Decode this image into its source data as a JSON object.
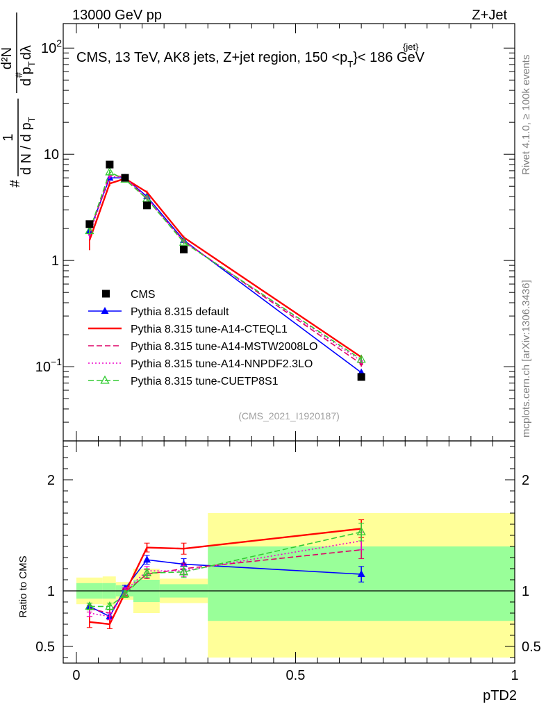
{
  "header": {
    "left": "13000 GeV pp",
    "right": "Z+Jet",
    "side_top": "Rivet 4.1.0, ≥ 100k events",
    "side_bottom": "mcplots.cern.ch [arXiv:1306.3436]",
    "analysis_id": "(CMS_2021_I1920187)"
  },
  "plot_title": {
    "main": "CMS, 13 TeV, AK8 jets, Z+jet region, 150 <p",
    "sup": "{jet}",
    "sub": "T",
    "tail": "}< 186 GeV"
  },
  "top_ylabel": {
    "lead": "#",
    "frac1_num": "1",
    "frac1_den": "d N / d p",
    "frac1_den_sub": "T",
    "frac2_num": "d²N",
    "frac2_num_sup": "#",
    "frac2_den": "d p",
    "frac2_den_sub": "T",
    "frac2_den_tail": "dλ",
    "frac2_den_sup": "#"
  },
  "colors": {
    "cms": "#000000",
    "default": "#0000ff",
    "cteql1": "#ff0000",
    "mstw": "#dd0066",
    "nnpdf": "#ee00cc",
    "cuetp": "#33cc33",
    "band_yellow": "#ffff99",
    "band_green": "#99ff99"
  },
  "chart_data": [
    {
      "type": "line",
      "panel": "main",
      "yscale": "log",
      "ylim": [
        0.02,
        170
      ],
      "xlim": [
        -0.03,
        1.0
      ],
      "y_ticks": [
        {
          "value": 0.1,
          "label": "10",
          "sup": "−1"
        },
        {
          "value": 1,
          "label": "1",
          "sup": ""
        },
        {
          "value": 10,
          "label": "10",
          "sup": ""
        },
        {
          "value": 100,
          "label": "10",
          "sup": "2"
        }
      ],
      "data": {
        "name": "CMS",
        "x": [
          0.03,
          0.076,
          0.111,
          0.161,
          0.245,
          0.65
        ],
        "y": [
          2.2,
          8.0,
          6.0,
          3.3,
          1.27,
          0.08
        ]
      },
      "series": [
        {
          "key": "default",
          "name": "Pythia 8.315 default",
          "style": "solid",
          "marker": "triangle",
          "x": [
            0.03,
            0.076,
            0.111,
            0.161,
            0.245,
            0.65
          ],
          "y": [
            1.9,
            6.0,
            6.0,
            4.0,
            1.55,
            0.088
          ],
          "err": [
            0.15,
            0.3,
            0.2,
            0.15,
            0.06,
            0.004
          ]
        },
        {
          "key": "cteql1",
          "name": "Pythia 8.315 tune-A14-CTEQL1",
          "style": "solid",
          "marker": "",
          "x": [
            0.03,
            0.076,
            0.111,
            0.161,
            0.245,
            0.65
          ],
          "y": [
            1.55,
            5.3,
            5.9,
            4.4,
            1.65,
            0.123
          ],
          "err": [
            0.2,
            0.3,
            0.2,
            0.15,
            0.06,
            0.006
          ]
        },
        {
          "key": "mstw",
          "name": "Pythia 8.315 tune-A14-MSTW2008LO",
          "style": "dashed",
          "marker": "",
          "x": [
            0.03,
            0.076,
            0.111,
            0.161,
            0.245,
            0.65
          ],
          "y": [
            1.85,
            6.4,
            6.1,
            3.8,
            1.52,
            0.106
          ],
          "err": [
            0.15,
            0.3,
            0.2,
            0.15,
            0.06,
            0.006
          ]
        },
        {
          "key": "nnpdf",
          "name": "Pythia 8.315 tune-A14-NNPDF2.3LO",
          "style": "dotted",
          "marker": "",
          "x": [
            0.03,
            0.076,
            0.111,
            0.161,
            0.245,
            0.65
          ],
          "y": [
            1.75,
            6.2,
            6.0,
            3.9,
            1.5,
            0.113
          ],
          "err": [
            0.15,
            0.3,
            0.2,
            0.15,
            0.06,
            0.006
          ]
        },
        {
          "key": "cuetp",
          "name": "Pythia 8.315 tune-CUETP8S1",
          "style": "dashed",
          "marker": "open-triangle",
          "x": [
            0.03,
            0.076,
            0.111,
            0.161,
            0.245,
            0.65
          ],
          "y": [
            1.9,
            6.8,
            5.8,
            3.8,
            1.48,
            0.117
          ],
          "err": [
            0.15,
            0.3,
            0.2,
            0.15,
            0.06,
            0.006
          ]
        }
      ],
      "legend": {
        "placement": "bottom-left",
        "entries": [
          {
            "key": "cms",
            "label": "CMS"
          },
          {
            "key": "default",
            "label": "Pythia 8.315 default"
          },
          {
            "key": "cteql1",
            "label": "Pythia 8.315 tune-A14-CTEQL1"
          },
          {
            "key": "mstw",
            "label": "Pythia 8.315 tune-A14-MSTW2008LO"
          },
          {
            "key": "nnpdf",
            "label": "Pythia 8.315 tune-A14-NNPDF2.3LO"
          },
          {
            "key": "cuetp",
            "label": "Pythia 8.315 tune-CUETP8S1"
          }
        ]
      }
    },
    {
      "type": "line",
      "panel": "ratio",
      "ylabel": "Ratio to CMS",
      "xlabel": "pTD2",
      "ylim": [
        0.35,
        2.35
      ],
      "xlim": [
        -0.03,
        1.0
      ],
      "y_ticks": [
        {
          "value": 0.5,
          "label": "0.5"
        },
        {
          "value": 1,
          "label": "1"
        },
        {
          "value": 2,
          "label": "2"
        }
      ],
      "x_ticks": [
        {
          "value": 0,
          "label": "0"
        },
        {
          "value": 0.5,
          "label": "0.5"
        },
        {
          "value": 1,
          "label": "1"
        }
      ],
      "bands": [
        {
          "x0": 0.0,
          "x1": 0.06,
          "yellow": [
            0.88,
            1.12
          ],
          "green": [
            0.93,
            1.07
          ]
        },
        {
          "x0": 0.06,
          "x1": 0.09,
          "yellow": [
            0.87,
            1.13
          ],
          "green": [
            0.93,
            1.07
          ]
        },
        {
          "x0": 0.09,
          "x1": 0.13,
          "yellow": [
            0.92,
            1.08
          ],
          "green": [
            0.95,
            1.05
          ]
        },
        {
          "x0": 0.13,
          "x1": 0.19,
          "yellow": [
            0.8,
            1.2
          ],
          "green": [
            0.9,
            1.1
          ]
        },
        {
          "x0": 0.19,
          "x1": 0.3,
          "yellow": [
            0.89,
            1.11
          ],
          "green": [
            0.94,
            1.06
          ]
        },
        {
          "x0": 0.3,
          "x1": 1.0,
          "yellow": [
            0.4,
            1.7
          ],
          "green": [
            0.73,
            1.4
          ]
        }
      ],
      "series": [
        {
          "key": "default",
          "x": [
            0.03,
            0.076,
            0.111,
            0.161,
            0.245,
            0.65
          ],
          "y": [
            0.86,
            0.77,
            1.02,
            1.28,
            1.24,
            1.15
          ],
          "err": [
            0.03,
            0.03,
            0.03,
            0.04,
            0.05,
            0.07
          ]
        },
        {
          "key": "cteql1",
          "x": [
            0.03,
            0.076,
            0.111,
            0.161,
            0.245,
            0.65
          ],
          "y": [
            0.72,
            0.7,
            0.98,
            1.39,
            1.38,
            1.56
          ],
          "err": [
            0.05,
            0.04,
            0.03,
            0.04,
            0.05,
            0.08
          ]
        },
        {
          "key": "mstw",
          "x": [
            0.03,
            0.076,
            0.111,
            0.161,
            0.245,
            0.65
          ],
          "y": [
            0.84,
            0.8,
            0.99,
            1.15,
            1.2,
            1.37
          ],
          "err": [
            0.03,
            0.03,
            0.03,
            0.04,
            0.05,
            0.08
          ]
        },
        {
          "key": "nnpdf",
          "x": [
            0.03,
            0.076,
            0.111,
            0.161,
            0.245,
            0.65
          ],
          "y": [
            0.8,
            0.77,
            1.0,
            1.18,
            1.18,
            1.45
          ],
          "err": [
            0.03,
            0.03,
            0.03,
            0.04,
            0.05,
            0.08
          ]
        },
        {
          "key": "cuetp",
          "x": [
            0.03,
            0.076,
            0.111,
            0.161,
            0.245,
            0.65
          ],
          "y": [
            0.86,
            0.86,
            0.97,
            1.16,
            1.17,
            1.53
          ],
          "err": [
            0.03,
            0.03,
            0.03,
            0.04,
            0.05,
            0.08
          ]
        }
      ]
    }
  ]
}
